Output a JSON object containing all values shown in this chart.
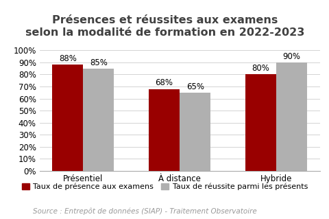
{
  "title": "Présences et réussites aux examens\nselon la modalité de formation en 2022-2023",
  "categories": [
    "Présentiel",
    "À distance",
    "Hybride"
  ],
  "series1_label": "Taux de présence aux examens",
  "series2_label": "Taux de réussite parmi les présents",
  "series1_values": [
    88,
    68,
    80
  ],
  "series2_values": [
    85,
    65,
    90
  ],
  "series1_color": "#990000",
  "series2_color": "#B0B0B0",
  "ylim": [
    0,
    100
  ],
  "yticks": [
    0,
    10,
    20,
    30,
    40,
    50,
    60,
    70,
    80,
    90,
    100
  ],
  "ytick_labels": [
    "0%",
    "10%",
    "20%",
    "30%",
    "40%",
    "50%",
    "60%",
    "70%",
    "80%",
    "90%",
    "100%"
  ],
  "source_text": "Source : Entrepôt de données (SIAP) - Traitement Observatoire",
  "background_color": "#FFFFFF",
  "bar_width": 0.32,
  "title_fontsize": 11.5,
  "title_color": "#404040",
  "label_fontsize": 8.5,
  "tick_fontsize": 8.5,
  "legend_fontsize": 8,
  "source_fontsize": 7.5
}
